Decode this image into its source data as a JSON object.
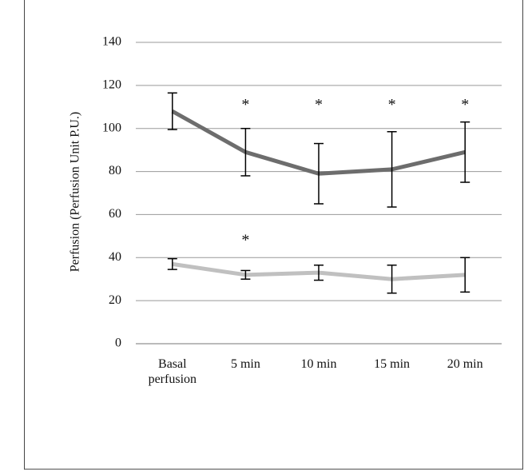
{
  "chart_data": {
    "type": "line",
    "y_label": "Perfusion (Perfusion Unit P.U.)",
    "categories": [
      "Basal perfusion",
      "5 min",
      "10 min",
      "15 min",
      "20 min"
    ],
    "series": [
      {
        "color": "#6d6d6d",
        "values": [
          108,
          89,
          79,
          81,
          89
        ],
        "errors": [
          8.5,
          11,
          14,
          17.5,
          14
        ]
      },
      {
        "color": "#c0c0c0",
        "values": [
          37,
          32,
          33,
          30,
          32
        ],
        "errors": [
          2.5,
          2,
          3.5,
          6.5,
          8
        ]
      }
    ],
    "annotations": [
      {
        "text": "*",
        "x": "5 min",
        "y": 112
      },
      {
        "text": "*",
        "x": "10 min",
        "y": 112
      },
      {
        "text": "*",
        "x": "15 min",
        "y": 112
      },
      {
        "text": "*",
        "x": "20 min",
        "y": 112
      },
      {
        "text": "*",
        "x": "5 min",
        "y": 49
      }
    ],
    "ylim": [
      0,
      140
    ],
    "yticks": [
      0,
      20,
      40,
      60,
      80,
      100,
      120,
      140
    ],
    "grid": true
  }
}
